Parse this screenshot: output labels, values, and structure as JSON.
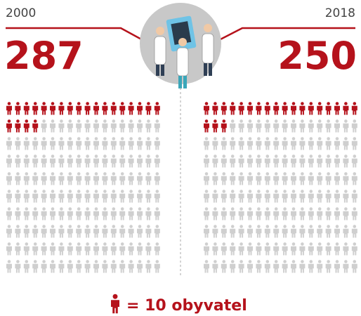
{
  "panels": [
    {
      "year": "2000",
      "value": "287",
      "highlighted": 22
    },
    {
      "year": "2018",
      "value": "250",
      "highlighted": 21
    }
  ],
  "legend": "= 10 obyvatel"
}
